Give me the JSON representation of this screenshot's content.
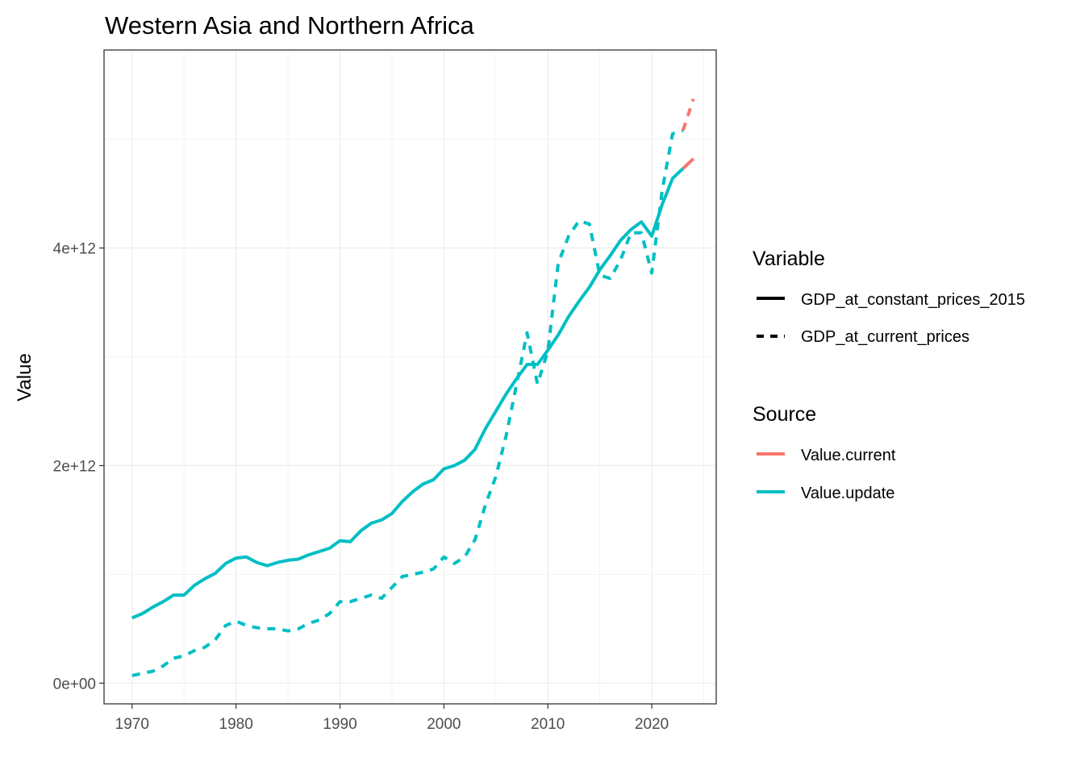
{
  "chart_data": {
    "type": "line",
    "title": "Western Asia and Northern Africa",
    "xlabel": "",
    "ylabel": "Value",
    "xlim": [
      1967.3,
      2026.2
    ],
    "ylim": [
      -190000000000,
      5820000000000
    ],
    "x_ticks": [
      1970,
      1980,
      1990,
      2000,
      2010,
      2020
    ],
    "x_tick_labels": [
      "1970",
      "1980",
      "1990",
      "2000",
      "2010",
      "2020"
    ],
    "y_ticks": [
      0,
      2000000000000,
      4000000000000
    ],
    "y_tick_labels": [
      "0e+00",
      "2e+12",
      "4e+12"
    ],
    "grid": true,
    "legend_position": "right",
    "legend": {
      "variable_title": "Variable",
      "variable_entries": [
        {
          "label": "GDP_at_constant_prices_2015",
          "linetype": "solid"
        },
        {
          "label": "GDP_at_current_prices",
          "linetype": "dashed"
        }
      ],
      "source_title": "Source",
      "source_entries": [
        {
          "label": "Value.current",
          "color": "#F8766D"
        },
        {
          "label": "Value.update",
          "color": "#00BFC4"
        }
      ]
    },
    "series": [
      {
        "variable": "GDP_at_constant_prices_2015",
        "source": "Value.update",
        "color": "#00BFC4",
        "linetype": "solid",
        "x": [
          1970,
          1971,
          1972,
          1973,
          1974,
          1975,
          1976,
          1977,
          1978,
          1979,
          1980,
          1981,
          1982,
          1983,
          1984,
          1985,
          1986,
          1987,
          1988,
          1989,
          1990,
          1991,
          1992,
          1993,
          1994,
          1995,
          1996,
          1997,
          1998,
          1999,
          2000,
          2001,
          2002,
          2003,
          2004,
          2005,
          2006,
          2007,
          2008,
          2009,
          2010,
          2011,
          2012,
          2013,
          2014,
          2015,
          2016,
          2017,
          2018,
          2019,
          2020,
          2021,
          2022,
          2023
        ],
        "values": [
          600000000000.0,
          640000000000.0,
          700000000000.0,
          750000000000.0,
          810000000000.0,
          810000000000.0,
          900000000000.0,
          960000000000.0,
          1010000000000.0,
          1100000000000.0,
          1150000000000.0,
          1160000000000.0,
          1110000000000.0,
          1080000000000.0,
          1110000000000.0,
          1130000000000.0,
          1140000000000.0,
          1180000000000.0,
          1210000000000.0,
          1240000000000.0,
          1310000000000.0,
          1300000000000.0,
          1400000000000.0,
          1470000000000.0,
          1500000000000.0,
          1560000000000.0,
          1670000000000.0,
          1760000000000.0,
          1830000000000.0,
          1870000000000.0,
          1970000000000.0,
          2000000000000.0,
          2050000000000.0,
          2150000000000.0,
          2340000000000.0,
          2500000000000.0,
          2660000000000.0,
          2800000000000.0,
          2930000000000.0,
          2930000000000.0,
          3060000000000.0,
          3200000000000.0,
          3370000000000.0,
          3510000000000.0,
          3640000000000.0,
          3800000000000.0,
          3930000000000.0,
          4070000000000.0,
          4170000000000.0,
          4240000000000.0,
          4110000000000.0,
          4400000000000.0,
          4640000000000.0,
          4730000000000.0
        ]
      },
      {
        "variable": "GDP_at_current_prices",
        "source": "Value.update",
        "color": "#00BFC4",
        "linetype": "dashed",
        "x": [
          1970,
          1971,
          1972,
          1973,
          1974,
          1975,
          1976,
          1977,
          1978,
          1979,
          1980,
          1981,
          1982,
          1983,
          1984,
          1985,
          1986,
          1987,
          1988,
          1989,
          1990,
          1991,
          1992,
          1993,
          1994,
          1995,
          1996,
          1997,
          1998,
          1999,
          2000,
          2001,
          2002,
          2003,
          2004,
          2005,
          2006,
          2007,
          2008,
          2009,
          2010,
          2011,
          2012,
          2013,
          2014,
          2015,
          2016,
          2017,
          2018,
          2019,
          2020,
          2021,
          2022,
          2023
        ],
        "values": [
          70000000000.0,
          90000000000.0,
          110000000000.0,
          160000000000.0,
          230000000000.0,
          250000000000.0,
          300000000000.0,
          330000000000.0,
          400000000000.0,
          530000000000.0,
          570000000000.0,
          530000000000.0,
          510000000000.0,
          500000000000.0,
          500000000000.0,
          480000000000.0,
          500000000000.0,
          550000000000.0,
          580000000000.0,
          640000000000.0,
          750000000000.0,
          750000000000.0,
          780000000000.0,
          810000000000.0,
          780000000000.0,
          880000000000.0,
          980000000000.0,
          1000000000000.0,
          1020000000000.0,
          1050000000000.0,
          1160000000000.0,
          1100000000000.0,
          1160000000000.0,
          1320000000000.0,
          1640000000000.0,
          1900000000000.0,
          2280000000000.0,
          2750000000000.0,
          3220000000000.0,
          2750000000000.0,
          3050000000000.0,
          3860000000000.0,
          4110000000000.0,
          4250000000000.0,
          4220000000000.0,
          3750000000000.0,
          3720000000000.0,
          3890000000000.0,
          4140000000000.0,
          4140000000000.0,
          3770000000000.0,
          4530000000000.0,
          5050000000000.0,
          5080000000000.0
        ]
      },
      {
        "variable": "GDP_at_constant_prices_2015",
        "source": "Value.current",
        "color": "#F8766D",
        "linetype": "solid",
        "x": [
          2023,
          2024
        ],
        "values": [
          4730000000000.0,
          4820000000000.0
        ]
      },
      {
        "variable": "GDP_at_current_prices",
        "source": "Value.current",
        "color": "#F8766D",
        "linetype": "dashed",
        "x": [
          2023,
          2024
        ],
        "values": [
          5080000000000.0,
          5370000000000.0
        ]
      }
    ]
  }
}
